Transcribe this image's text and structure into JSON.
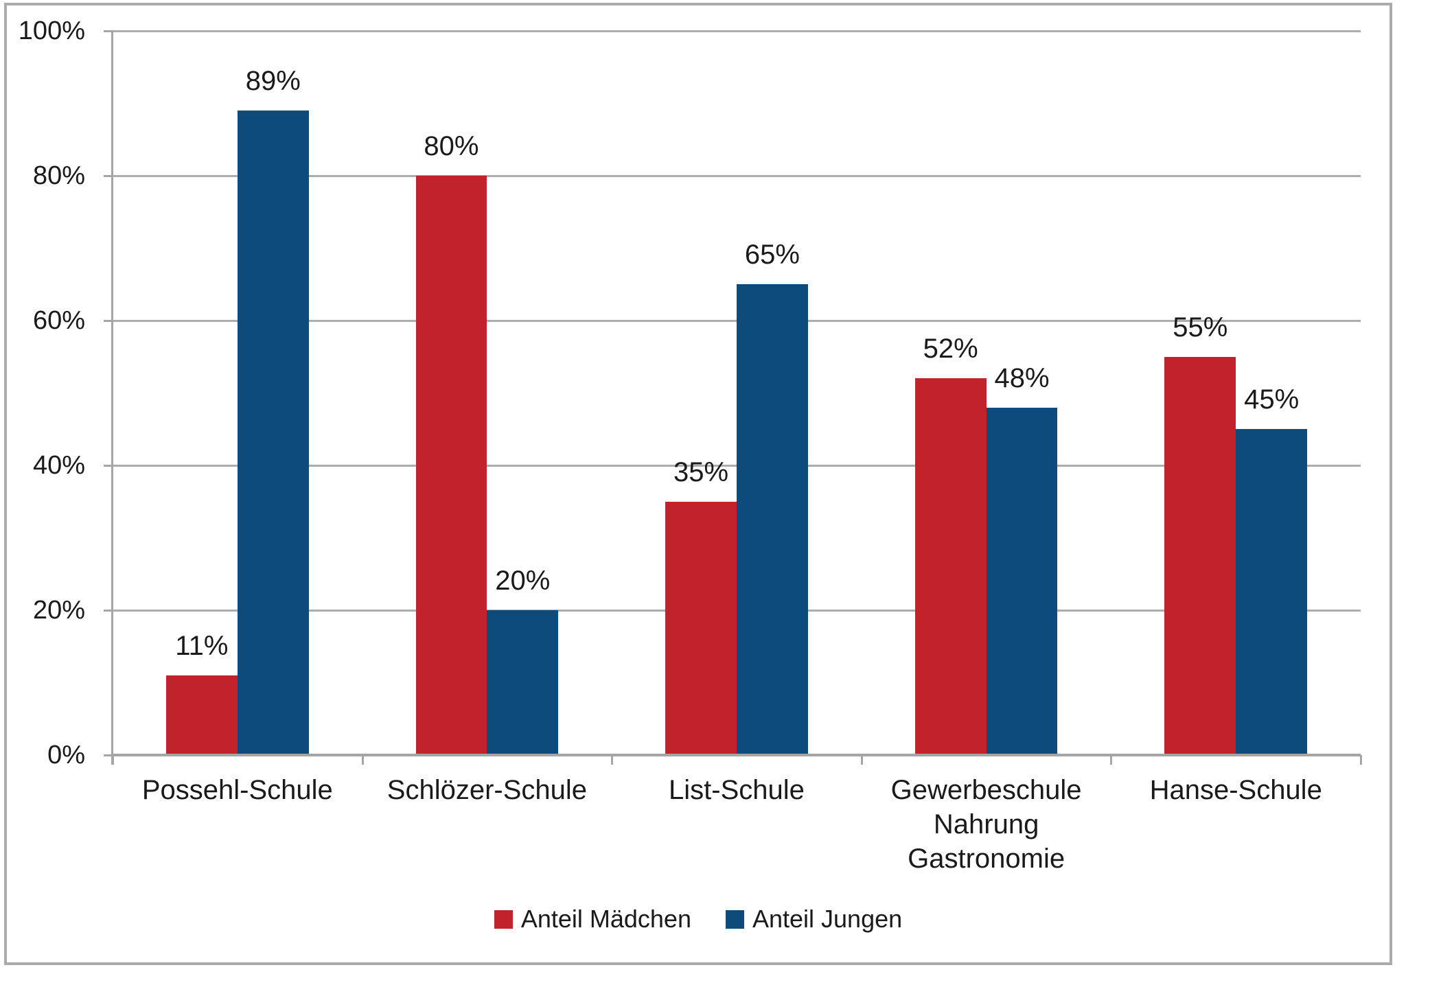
{
  "chart_data": {
    "type": "bar",
    "categories": [
      "Possehl-Schule",
      "Schlözer-Schule",
      "List-Schule",
      "Gewerbeschule Nahrung Gastronomie",
      "Hanse-Schule"
    ],
    "category_lines": [
      [
        "Possehl-Schule"
      ],
      [
        "Schlözer-Schule"
      ],
      [
        "List-Schule"
      ],
      [
        "Gewerbeschule",
        "Nahrung",
        "Gastronomie"
      ],
      [
        "Hanse-Schule"
      ]
    ],
    "series": [
      {
        "id": "anteil-maedchen",
        "name": "Anteil Mädchen",
        "color": "#c2222a",
        "values": [
          11,
          80,
          35,
          52,
          55
        ],
        "labels": [
          "11%",
          "80%",
          "35%",
          "52%",
          "55%"
        ]
      },
      {
        "id": "anteil-jungen",
        "name": "Anteil Jungen",
        "color": "#0d4b7d",
        "values": [
          89,
          20,
          65,
          48,
          45
        ],
        "labels": [
          "89%",
          "20%",
          "65%",
          "48%",
          "45%"
        ]
      }
    ],
    "y_axis": {
      "min": 0,
      "max": 100,
      "step": 20,
      "tick_labels": [
        "0%",
        "20%",
        "40%",
        "60%",
        "80%",
        "100%"
      ]
    },
    "grid": true,
    "legend_position": "bottom",
    "bar_gap_ratio": 1.5
  }
}
